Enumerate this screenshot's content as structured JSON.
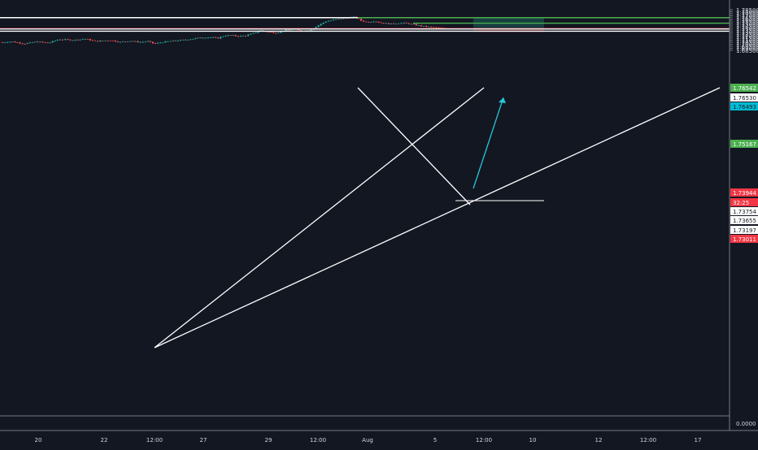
{
  "chart_data": {
    "type": "candlestick",
    "grid": false,
    "colors": {
      "background": "#131722",
      "up": "#26a69a",
      "down": "#ef5350",
      "text": "#d1d4dc",
      "axis_line": "#787b86",
      "line": "#ffffff",
      "target": "#4caf50",
      "stop_band": "#e53935",
      "current": "#f23645",
      "teal_label": "#00bcd4",
      "target_zone": "#1b5e59",
      "stop_zone": "#7a1a1f",
      "arrow": "#26c6da"
    },
    "y_axis": {
      "ylim": [
        1.6825,
        1.7875
      ],
      "tick_labels": [
        "1.78500",
        "1.78000",
        "1.77500",
        "1.77000",
        "1.76500",
        "1.76000",
        "1.75500",
        "1.75000",
        "1.74500",
        "1.74000",
        "1.73500",
        "1.73000",
        "1.72500",
        "1.72000",
        "1.71500",
        "1.71000",
        "1.70500",
        "1.70000",
        "1.69500",
        "1.69000",
        "1.68500"
      ]
    },
    "x_axis": {
      "tick_labels": [
        "20",
        "22",
        "12:00",
        "27",
        "29",
        "12:00",
        "Aug",
        "5",
        "12:00",
        "10",
        "12",
        "12:00",
        "17"
      ]
    },
    "series": {
      "keypoints": [
        [
          0,
          1.704
        ],
        [
          14,
          1.7065
        ],
        [
          30,
          1.701
        ],
        [
          45,
          1.706
        ],
        [
          60,
          1.703
        ],
        [
          72,
          1.712
        ],
        [
          90,
          1.71
        ],
        [
          105,
          1.713
        ],
        [
          118,
          1.707
        ],
        [
          135,
          1.71
        ],
        [
          148,
          1.705
        ],
        [
          160,
          1.708
        ],
        [
          172,
          1.705
        ],
        [
          182,
          1.707
        ],
        [
          190,
          1.701
        ],
        [
          200,
          1.705
        ],
        [
          212,
          1.708
        ],
        [
          224,
          1.71
        ],
        [
          236,
          1.713
        ],
        [
          246,
          1.716
        ],
        [
          258,
          1.717
        ],
        [
          268,
          1.715
        ],
        [
          276,
          1.721
        ],
        [
          284,
          1.722
        ],
        [
          292,
          1.7195
        ],
        [
          302,
          1.721
        ],
        [
          312,
          1.727
        ],
        [
          320,
          1.734
        ],
        [
          330,
          1.73
        ],
        [
          340,
          1.728
        ],
        [
          350,
          1.734
        ],
        [
          360,
          1.737
        ],
        [
          370,
          1.733
        ],
        [
          380,
          1.734
        ],
        [
          386,
          1.74
        ],
        [
          392,
          1.747
        ],
        [
          400,
          1.756
        ],
        [
          410,
          1.76
        ],
        [
          420,
          1.763
        ],
        [
          430,
          1.766
        ],
        [
          437,
          1.767
        ],
        [
          444,
          1.758
        ],
        [
          452,
          1.754
        ],
        [
          460,
          1.757
        ],
        [
          470,
          1.752
        ],
        [
          480,
          1.75
        ],
        [
          490,
          1.752
        ],
        [
          500,
          1.7515
        ],
        [
          510,
          1.748
        ],
        [
          520,
          1.744
        ],
        [
          530,
          1.742
        ],
        [
          540,
          1.74
        ],
        [
          548,
          1.739
        ],
        [
          555,
          1.7394
        ]
      ],
      "candle_count": 180,
      "x_range": [
        3,
        555
      ],
      "seed": 7
    },
    "price_labels": [
      {
        "text": "1.76542",
        "value": 1.76542,
        "style": "target"
      },
      {
        "text": "1.76530",
        "value": 1.7653,
        "style": "white"
      },
      {
        "text": "1.76493",
        "value": 1.76493,
        "style": "teal"
      },
      {
        "text": "1.75167",
        "value": 1.75167,
        "style": "target"
      },
      {
        "text": "1.73944",
        "value": 1.73944,
        "style": "current"
      },
      {
        "text": "32:25",
        "value": 1.7365,
        "style": "current"
      },
      {
        "text": "1.73754",
        "value": 1.73754,
        "style": "white"
      },
      {
        "text": "1.73655",
        "value": 1.73655,
        "style": "white"
      },
      {
        "text": "1.73197",
        "value": 1.73197,
        "style": "white"
      },
      {
        "text": "1.73011",
        "value": 1.73011,
        "style": "stop"
      }
    ],
    "horizontal_lines": [
      {
        "value": 1.76542,
        "color": "line",
        "x1": 0,
        "x2": 897
      },
      {
        "value": 1.73754,
        "color": "line",
        "x1": 0,
        "x2": 897
      },
      {
        "value": 1.73197,
        "color": "line",
        "x1": 0,
        "x2": 897
      },
      {
        "value": 1.76542,
        "color": "target",
        "x1": 440,
        "x2": 897
      },
      {
        "value": 1.75167,
        "color": "target",
        "x1": 508,
        "x2": 897
      },
      {
        "value": 1.73944,
        "color": "current",
        "x1": 0,
        "x2": 897,
        "thin": true
      }
    ]
  }
}
